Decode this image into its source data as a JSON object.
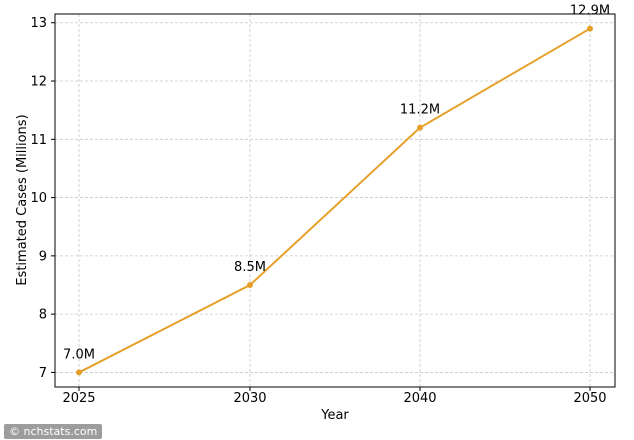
{
  "chart_data": {
    "type": "line",
    "title": "",
    "xlabel": "Year",
    "ylabel": "Estimated Cases (Millions)",
    "x": [
      2025,
      2030,
      2040,
      2050
    ],
    "x_tick_labels": [
      "2025",
      "2030",
      "2040",
      "2050"
    ],
    "series": [
      {
        "values": [
          7.0,
          8.5,
          11.2,
          12.9
        ],
        "labels": [
          "7.0M",
          "8.5M",
          "11.2M",
          "12.9M"
        ],
        "color": "#e6a02a"
      }
    ],
    "yticks": [
      7,
      8,
      9,
      10,
      11,
      12,
      13
    ],
    "ylim": [
      6.75,
      13.15
    ],
    "grid": true,
    "x_scale": "categorical"
  },
  "watermark": "© nchstats.com"
}
